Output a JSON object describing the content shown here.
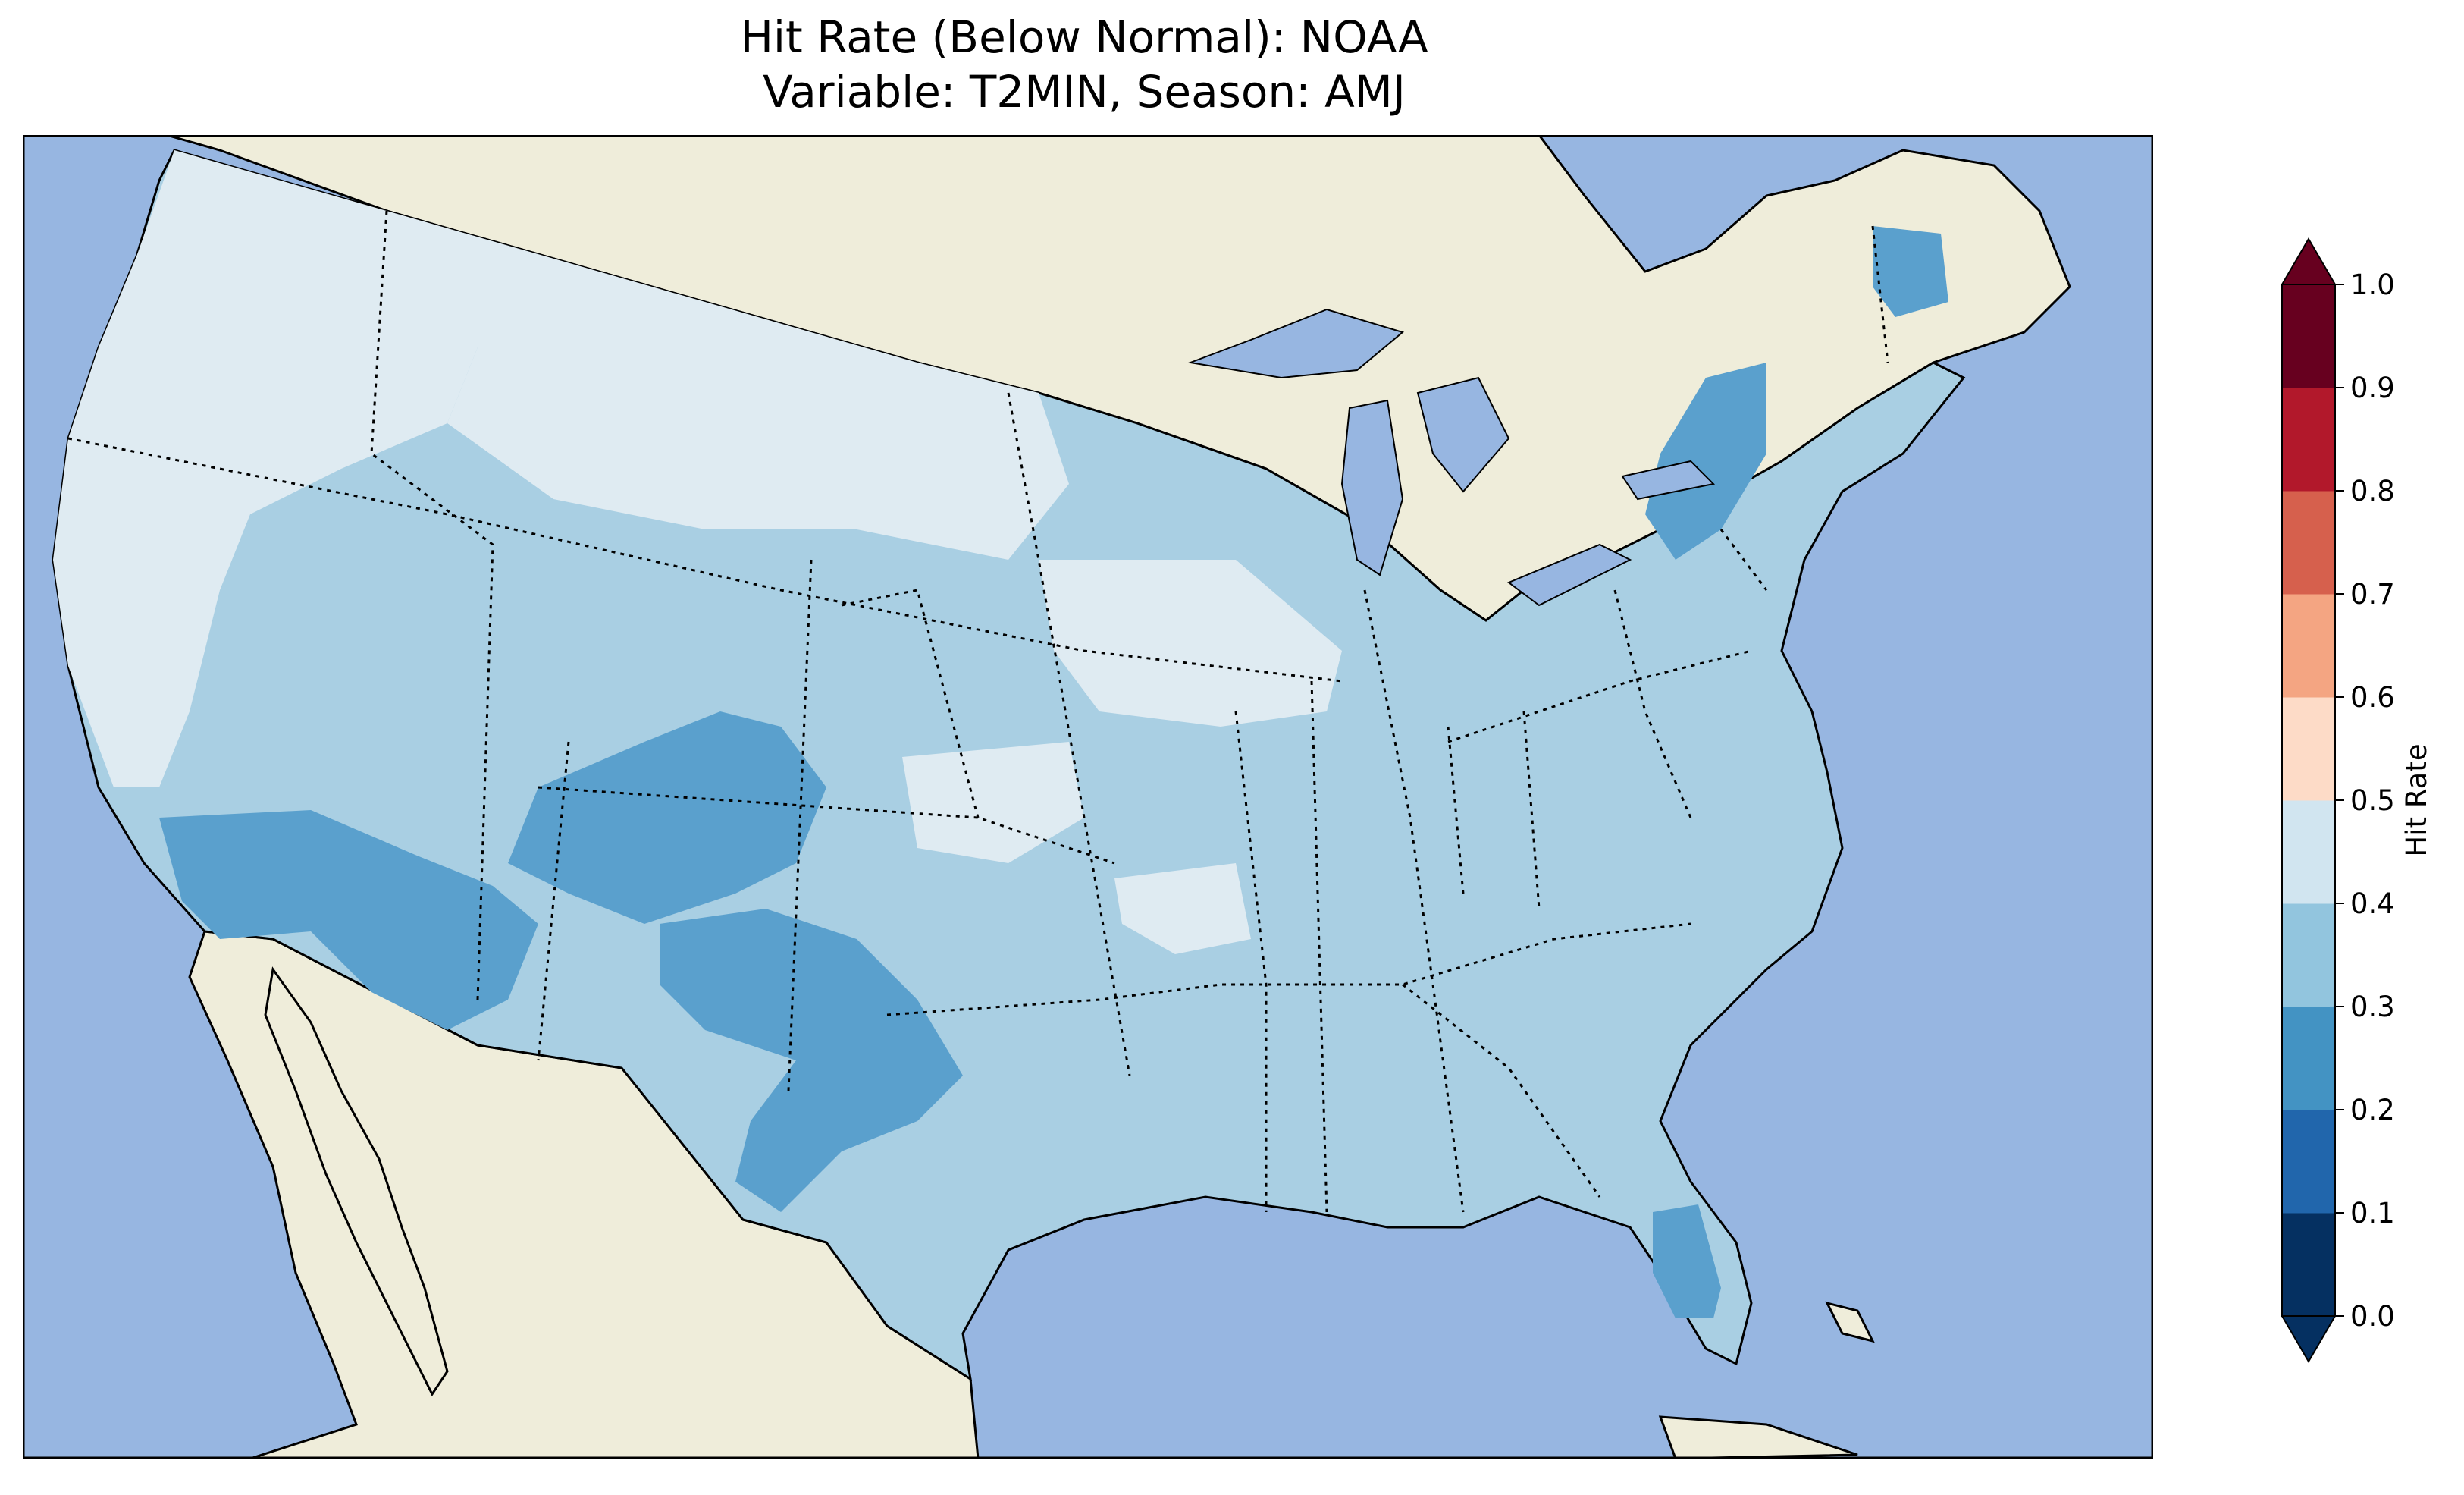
{
  "title": {
    "line1": "Hit Rate (Below Normal): NOAA",
    "line2": "Variable: T2MIN, Season: AMJ"
  },
  "colors": {
    "ocean": "#97b6e1",
    "land": "#efedda",
    "class_0_1": "#053061",
    "class_1_2": "#2166ac",
    "class_2_3": "#4393c3",
    "class_3_4": "#92c5de",
    "class_4_5": "#d1e5f0",
    "class_5_6": "#fddbc7",
    "class_6_7": "#f4a582",
    "class_7_8": "#d6604d",
    "class_8_9": "#b2182b",
    "class_9_10": "#67001f"
  },
  "colorbar": {
    "label": "Hit Rate",
    "ticks": [
      "0.0",
      "0.1",
      "0.2",
      "0.3",
      "0.4",
      "0.5",
      "0.6",
      "0.7",
      "0.8",
      "0.9",
      "1.0"
    ],
    "extend": "both"
  },
  "map": {
    "region": "Contiguous United States",
    "regions": [
      {
        "name": "west-coast-pacific-northwest",
        "class": "0.4-0.5"
      },
      {
        "name": "northern-plains",
        "class": "0.4-0.5"
      },
      {
        "name": "upper-midwest",
        "class": "0.3-0.4"
      },
      {
        "name": "four-corners-southwest",
        "class": "0.2-0.3"
      },
      {
        "name": "southern-california",
        "class": "0.2-0.3"
      },
      {
        "name": "west-texas-new-mexico",
        "class": "0.2-0.3"
      },
      {
        "name": "kansas-missouri",
        "class": "0.4-0.5"
      },
      {
        "name": "southeast",
        "class": "0.3-0.4"
      },
      {
        "name": "new-york-pennsylvania",
        "class": "0.2-0.3"
      },
      {
        "name": "maine",
        "class": "0.2-0.3"
      },
      {
        "name": "south-florida",
        "class": "0.2-0.3"
      }
    ]
  }
}
